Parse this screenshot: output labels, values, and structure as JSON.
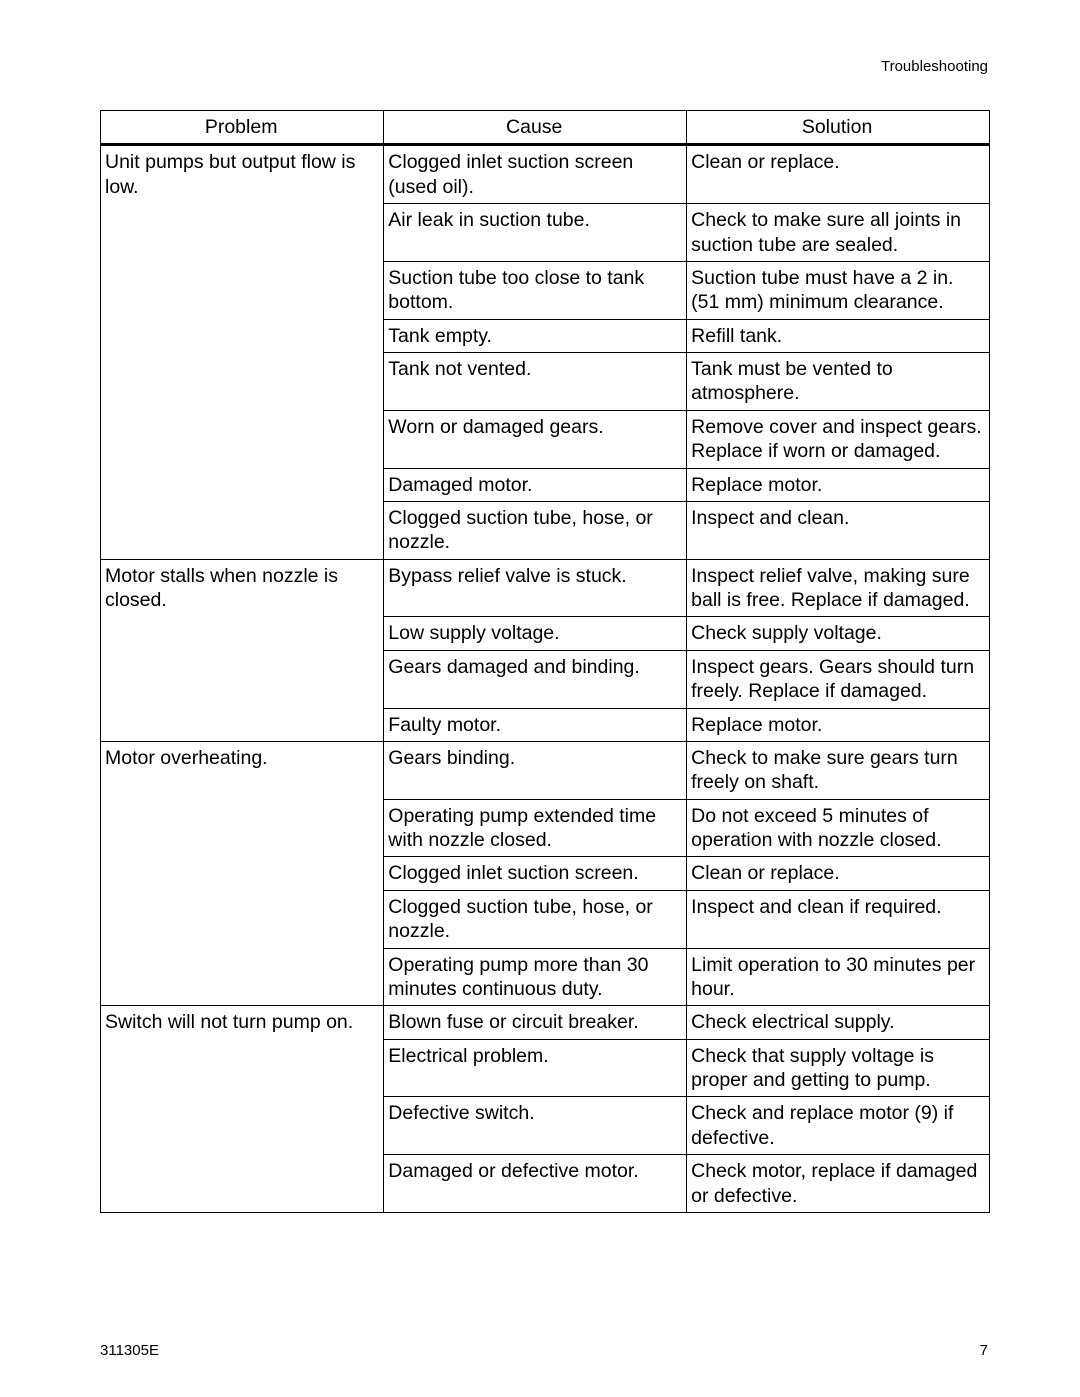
{
  "page": {
    "section_header": "Troubleshooting",
    "doc_number": "311305E",
    "page_number": "7"
  },
  "table": {
    "columns": [
      "Problem",
      "Cause",
      "Solution"
    ],
    "col_widths_pct": [
      29,
      31,
      31
    ],
    "border_color": "#000000",
    "font_size_pt": 15,
    "groups": [
      {
        "problem": "Unit pumps but output flow is low.",
        "rows": [
          {
            "cause": "Clogged inlet suction screen (used oil).",
            "solution": "Clean or replace."
          },
          {
            "cause": "Air leak in suction tube.",
            "solution": "Check to make sure all joints in suction tube are sealed."
          },
          {
            "cause": "Suction tube too close to tank bottom.",
            "solution": "Suction tube must have a 2 in. (51 mm) minimum clearance."
          },
          {
            "cause": "Tank empty.",
            "solution": "Refill tank."
          },
          {
            "cause": "Tank not vented.",
            "solution": "Tank must be vented to atmosphere."
          },
          {
            "cause": "Worn or damaged gears.",
            "solution": "Remove cover and inspect gears. Replace if worn or damaged."
          },
          {
            "cause": "Damaged motor.",
            "solution": "Replace motor."
          },
          {
            "cause": "Clogged suction tube, hose, or nozzle.",
            "solution": "Inspect and clean."
          }
        ]
      },
      {
        "problem": "Motor stalls when nozzle is closed.",
        "rows": [
          {
            "cause": "Bypass relief valve is stuck.",
            "solution": "Inspect relief valve, making sure ball is free. Replace if damaged."
          },
          {
            "cause": "Low supply voltage.",
            "solution": "Check supply voltage."
          },
          {
            "cause": "Gears damaged and binding.",
            "solution": "Inspect gears. Gears should turn freely. Replace if damaged."
          },
          {
            "cause": "Faulty motor.",
            "solution": "Replace motor."
          }
        ]
      },
      {
        "problem": "Motor overheating.",
        "rows": [
          {
            "cause": "Gears binding.",
            "solution": "Check to make sure gears turn freely on shaft."
          },
          {
            "cause": "Operating pump extended time with nozzle closed.",
            "solution": "Do not exceed 5 minutes of operation with nozzle closed."
          },
          {
            "cause": "Clogged inlet suction screen.",
            "solution": "Clean or replace."
          },
          {
            "cause": "Clogged suction tube, hose, or nozzle.",
            "solution": "Inspect and clean if required."
          },
          {
            "cause": "Operating pump more than 30 minutes continuous duty.",
            "solution": "Limit operation to 30 minutes per hour."
          }
        ]
      },
      {
        "problem": "Switch will not turn pump on.",
        "rows": [
          {
            "cause": "Blown fuse or circuit breaker.",
            "solution": "Check electrical supply."
          },
          {
            "cause": "Electrical problem.",
            "solution": "Check that supply voltage is proper and getting to pump."
          },
          {
            "cause": "Defective switch.",
            "solution": "Check and replace motor (9) if defective."
          },
          {
            "cause": "Damaged or defective motor.",
            "solution": "Check motor, replace if damaged or defective."
          }
        ]
      }
    ]
  }
}
